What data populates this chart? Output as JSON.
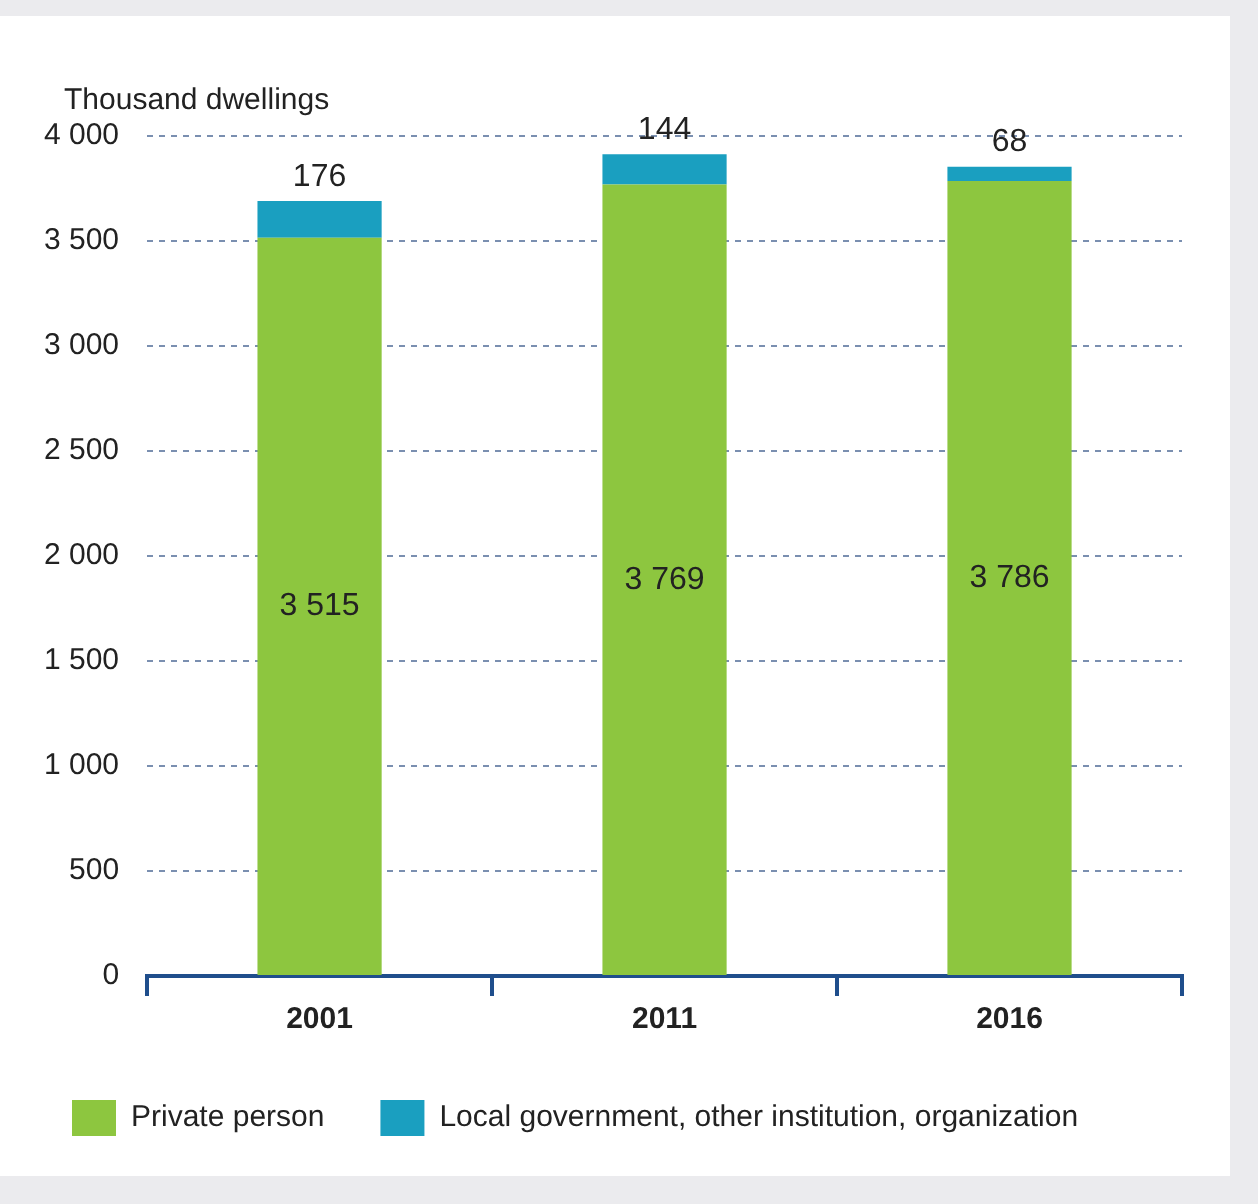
{
  "chart_data": {
    "type": "bar",
    "stacked": true,
    "ylabel": "Thousand dwellings",
    "categories": [
      "2001",
      "2011",
      "2016"
    ],
    "series": [
      {
        "name": "Private person",
        "color": "#8dc63f",
        "values": [
          3515,
          3769,
          3786
        ],
        "value_labels": [
          "3 515",
          "3 769",
          "3 786"
        ]
      },
      {
        "name": "Local government, other institution, organization",
        "color": "#1a9fc0",
        "values": [
          176,
          144,
          68
        ],
        "value_labels": [
          "176",
          "144",
          "68"
        ]
      }
    ],
    "ylim": [
      0,
      4000
    ],
    "yticks": [
      {
        "value": 0,
        "label": "0"
      },
      {
        "value": 500,
        "label": "500"
      },
      {
        "value": 1000,
        "label": "1 000"
      },
      {
        "value": 1500,
        "label": "1 500"
      },
      {
        "value": 2000,
        "label": "2 000"
      },
      {
        "value": 2500,
        "label": "2 500"
      },
      {
        "value": 3000,
        "label": "3 000"
      },
      {
        "value": 3500,
        "label": "3 500"
      },
      {
        "value": 4000,
        "label": "4 000"
      }
    ],
    "grid": "y",
    "legend": "bottom"
  }
}
